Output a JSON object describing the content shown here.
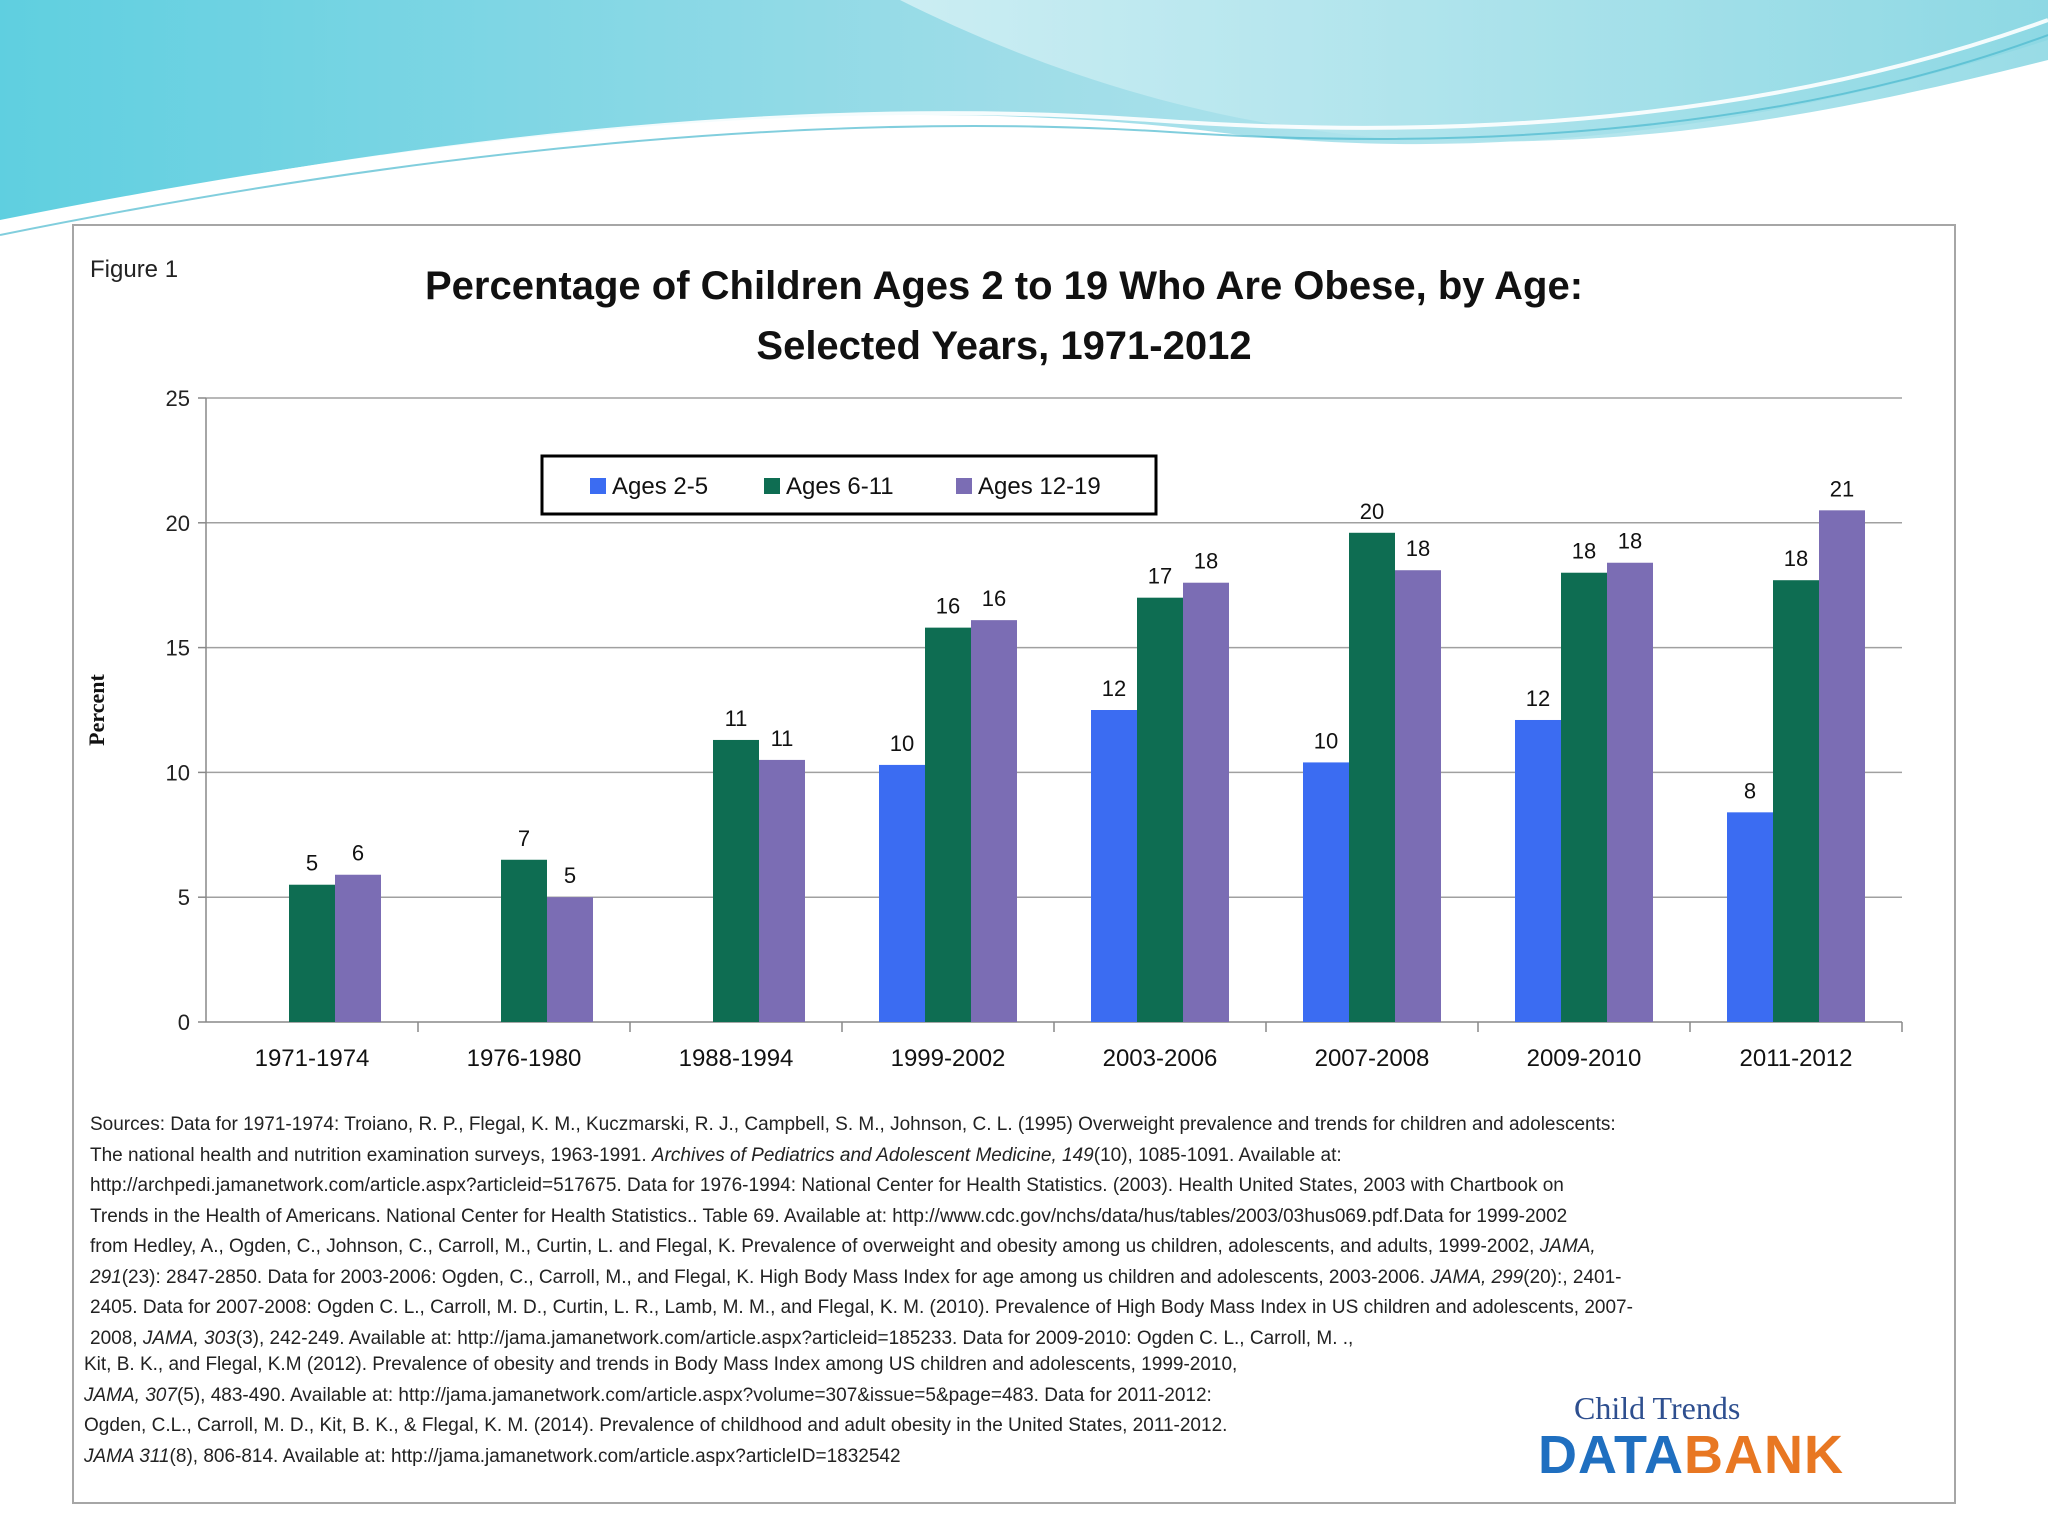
{
  "figure_label": "Figure 1",
  "chart_data": {
    "type": "bar",
    "title": "Percentage of Children Ages 2 to 19 Who Are Obese, by Age:",
    "subtitle": "Selected Years, 1971-2012",
    "ylabel": "Percent",
    "xlabel": "",
    "ylim": [
      0,
      25
    ],
    "yticks": [
      0,
      5,
      10,
      15,
      20,
      25
    ],
    "grid": true,
    "legend_position": "top-center",
    "categories": [
      "1971-1974",
      "1976-1980",
      "1988-1994",
      "1999-2002",
      "2003-2006",
      "2007-2008",
      "2009-2010",
      "2011-2012"
    ],
    "series": [
      {
        "name": "Ages 2-5",
        "color": "#3b6cf2",
        "values": [
          null,
          null,
          null,
          10.3,
          12.5,
          10.4,
          12.1,
          8.4
        ],
        "labels": [
          "",
          "",
          "",
          "10",
          "12",
          "10",
          "12",
          "8"
        ]
      },
      {
        "name": "Ages 6-11",
        "color": "#0e6d52",
        "values": [
          5.5,
          6.5,
          11.3,
          15.8,
          17.0,
          19.6,
          18.0,
          17.7
        ],
        "labels": [
          "5",
          "7",
          "11",
          "16",
          "17",
          "20",
          "18",
          "18"
        ]
      },
      {
        "name": "Ages 12-19",
        "color": "#7b6db4",
        "values": [
          5.9,
          5.0,
          10.5,
          16.1,
          17.6,
          18.1,
          18.4,
          20.5
        ],
        "labels": [
          "6",
          "5",
          "11",
          "16",
          "18",
          "18",
          "18",
          "21"
        ]
      }
    ]
  },
  "sources": {
    "lines_a": [
      [
        "Sources: Data for 1971-1974:  Troiano, R. P., Flegal, K. M., Kuczmarski, R. J., Campbell, S. M., Johnson,  C. L. (1995) Overweight prevalence and trends  for children  and adolescents:"
      ],
      [
        "The national health and nutrition  examination surveys, 1963-1991. ",
        "Archives of Pediatrics and Adolescent Medicine, 149",
        "(10), 1085-1091. Available at:"
      ],
      [
        "http://archpedi.jamanetwork.com/article.aspx?articleid=517675.  Data for 1976-1994:  National Center for Health Statistics. (2003). Health United States, 2003 with Chartbook  on"
      ],
      [
        "Trends in the Health of Americans. National Center for Health Statistics.. Table 69. Available at: http://www.cdc.gov/nchs/data/hus/tables/2003/03hus069.pdf.Data for 1999-2002"
      ],
      [
        "from Hedley, A., Ogden, C., Johnson, C., Carroll, M., Curtin, L. and Flegal, K. Prevalence  of overweight and obesity among us children, adolescents, and adults, 1999-2002, ",
        "JAMA,",
        ""
      ],
      [
        "",
        "291",
        "(23): 2847-2850.  Data for 2003-2006: Ogden, C., Carroll, M., and Flegal, K. High Body Mass Index for age among us children  and adolescents, 2003-2006. ",
        "JAMA, 299",
        "(20):, 2401-"
      ],
      [
        "2405. Data for 2007-2008: Ogden C. L., Carroll, M. D., Curtin, L. R., Lamb, M. M., and Flegal, K. M.  (2010). Prevalence of High Body Mass Index in US children and adolescents, 2007-"
      ],
      [
        "2008, ",
        "JAMA, 303",
        "(3), 242-249. Available at: http://jama.jamanetwork.com/article.aspx?articleid=185233. Data for 2009-2010:  Ogden C. L., Carroll, M. .,"
      ]
    ],
    "lines_b": [
      [
        "Kit, B. K., and Flegal, K.M (2012). Prevalence of obesity and trends in Body Mass Index among US children and adolescents, 1999-2010,"
      ],
      [
        "",
        "JAMA, 307",
        "(5),  483-490. Available at: http://jama.jamanetwork.com/article.aspx?volume=307&issue=5&page=483. Data for 2011-2012:"
      ],
      [
        "Ogden, C.L., Carroll, M. D., Kit, B. K., & Flegal, K. M. (2014). Prevalence of childhood and adult obesity in the United States, 2011-2012."
      ],
      [
        "",
        "JAMA 311",
        "(8), 806-814. Available at: http://jama.jamanetwork.com/article.aspx?articleID=1832542"
      ]
    ]
  },
  "logo": {
    "top_text": "Child Trends",
    "data_text": "DATA",
    "bank_text": "BANK"
  }
}
